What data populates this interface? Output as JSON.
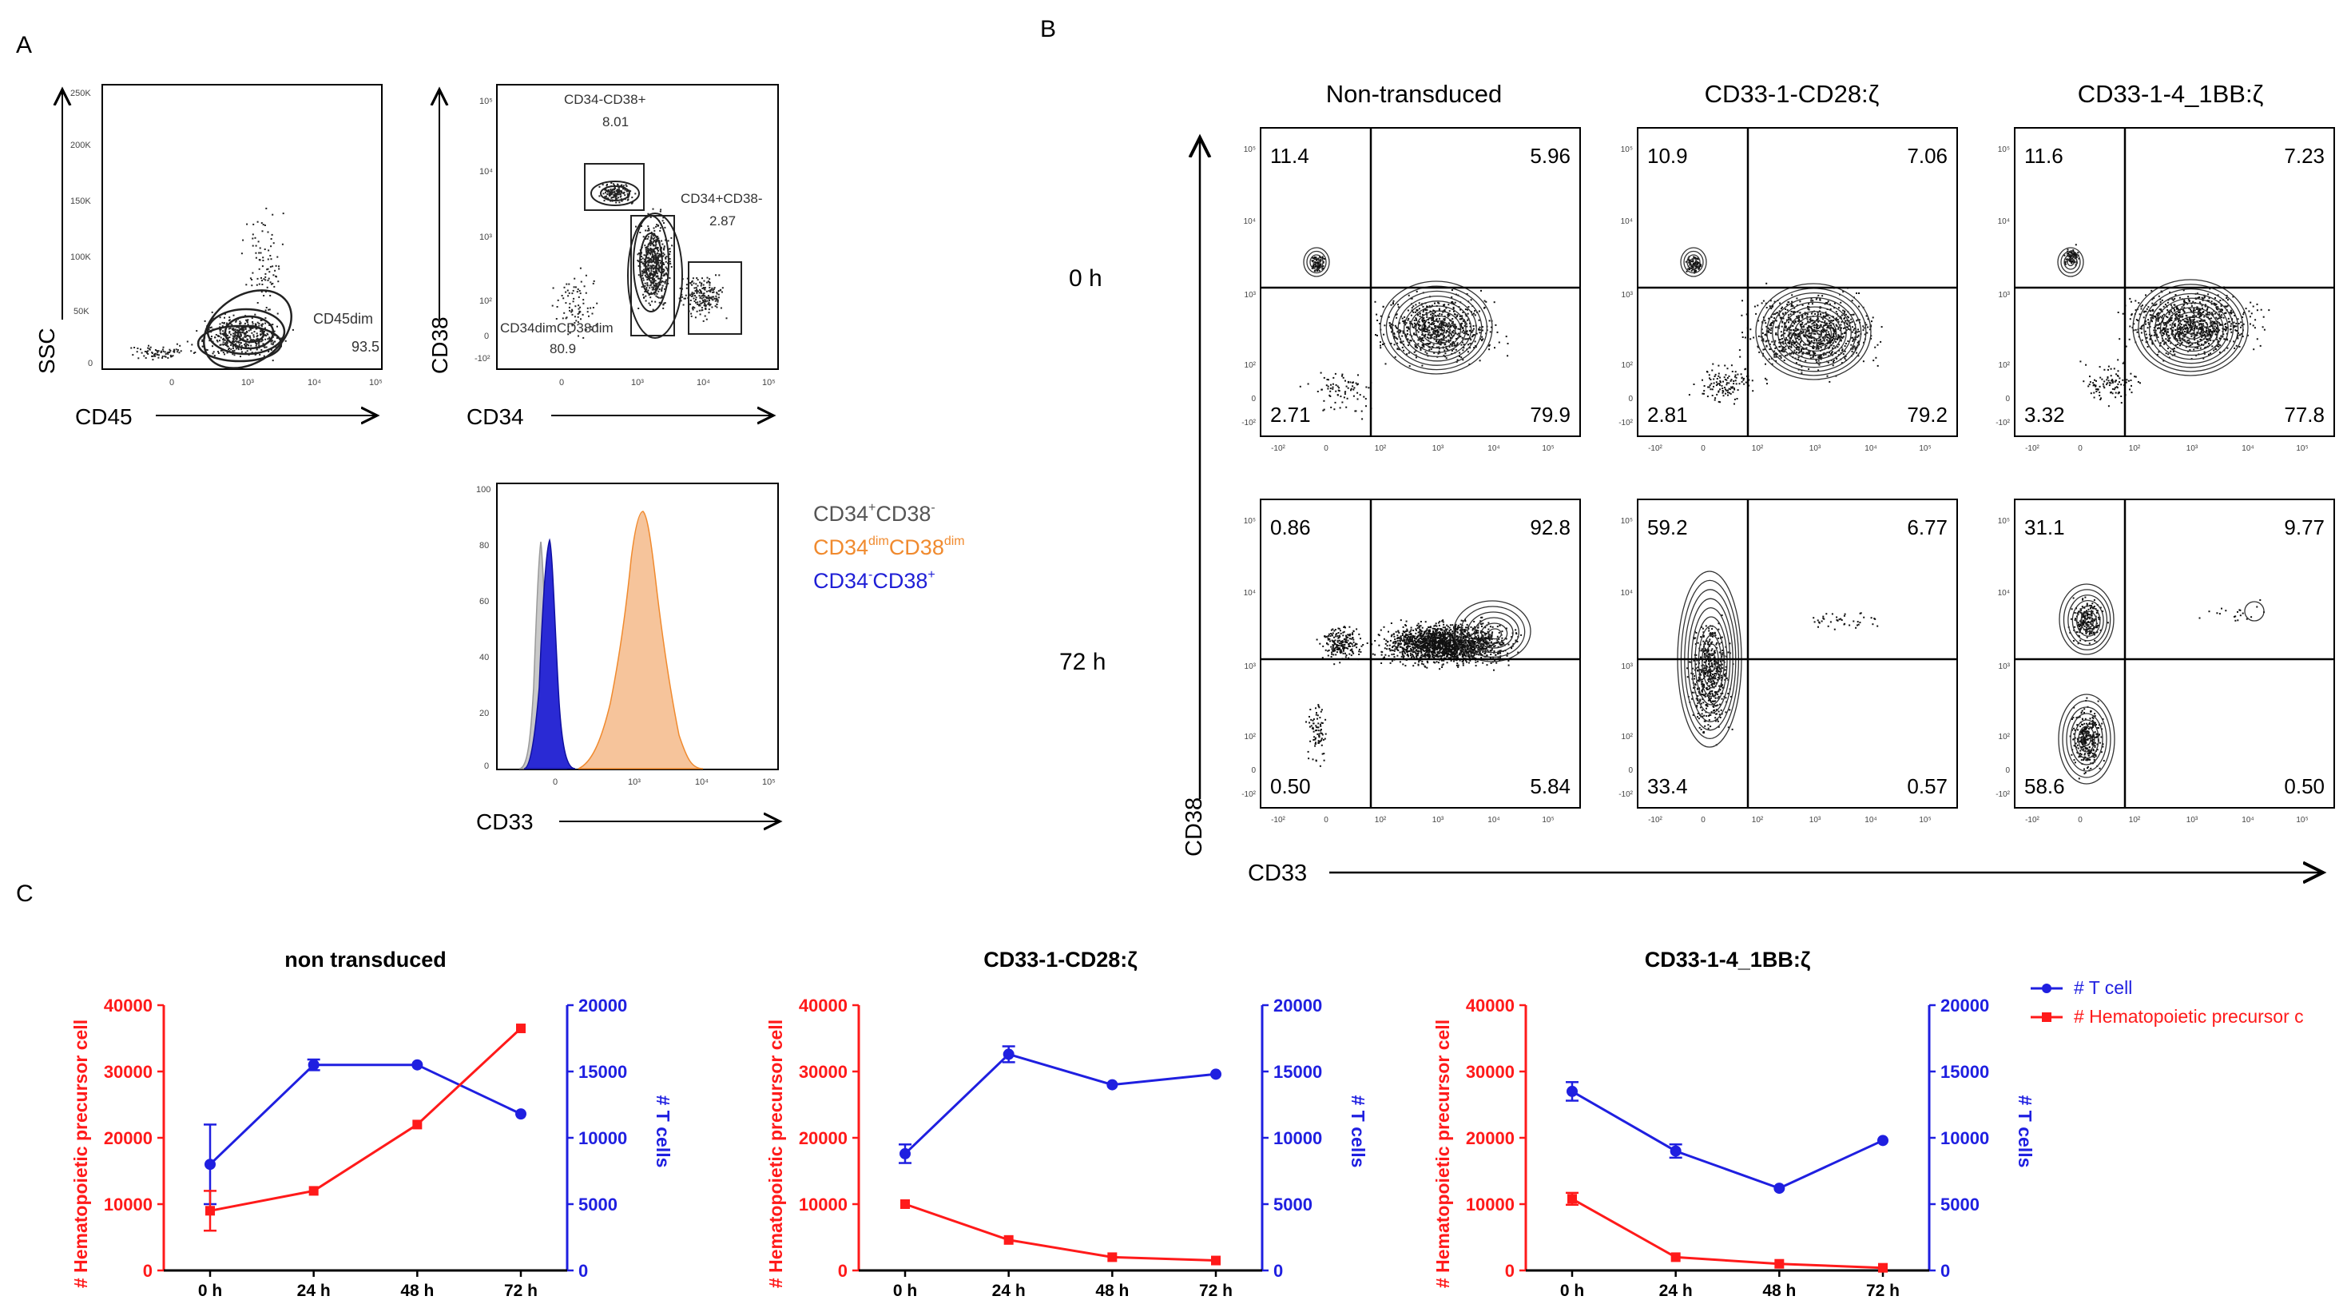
{
  "panel_letters": {
    "a": "A",
    "b": "B",
    "c": "C"
  },
  "panel_a": {
    "scatter1": {
      "x_label": "CD45",
      "y_label": "SSC",
      "x_ticks": [
        "0",
        "10³",
        "10⁴",
        "10⁵"
      ],
      "y_ticks": [
        "250K",
        "200K",
        "150K",
        "100K",
        "50K",
        "0"
      ],
      "gate_label": "CD45dim",
      "gate_value": "93.5"
    },
    "scatter2": {
      "x_label": "CD34",
      "y_label": "CD38",
      "x_ticks": [
        "0",
        "10³",
        "10⁴",
        "10⁵"
      ],
      "y_ticks": [
        "10⁵",
        "10⁴",
        "10³",
        "10²",
        "0",
        "-10²"
      ],
      "gates": [
        {
          "label": "CD34-CD38+",
          "value": "8.01"
        },
        {
          "label": "CD34+CD38-",
          "value": "2.87"
        },
        {
          "label": "CD34dimCD38dim",
          "value": "80.9"
        }
      ]
    },
    "histogram": {
      "x_label": "CD33",
      "x_ticks": [
        "0",
        "10³",
        "10⁴",
        "10⁵"
      ],
      "y_ticks": [
        "100",
        "80",
        "60",
        "40",
        "20",
        "0"
      ],
      "legend": [
        {
          "base": "CD34",
          "sup1": "+",
          "mid": "CD38",
          "sup2": "-",
          "color": "#555555"
        },
        {
          "base": "CD34",
          "sup1": "dim",
          "mid": "CD38",
          "sup2": "dim",
          "color": "#f08a2e"
        },
        {
          "base": "CD34",
          "sup1": "-",
          "mid": "CD38",
          "sup2": "+",
          "color": "#1f1fd6"
        }
      ]
    }
  },
  "panel_b": {
    "column_titles": [
      "Non-transduced",
      "CD33-1-CD28:ζ",
      "CD33-1-4_1BB:ζ"
    ],
    "row_labels": [
      "0 h",
      "72 h"
    ],
    "y_axis_label": "CD38",
    "x_axis_label": "CD33",
    "tick_y": [
      "10⁵",
      "10⁴",
      "10³",
      "10²",
      "0",
      "-10²"
    ],
    "tick_x": [
      "-10²",
      "0",
      "10²",
      "10³",
      "10⁴",
      "10⁵"
    ],
    "quadrants": [
      [
        {
          "ul": "11.4",
          "ur": "5.96",
          "ll": "2.71",
          "lr": "79.9"
        },
        {
          "ul": "10.9",
          "ur": "7.06",
          "ll": "2.81",
          "lr": "79.2"
        },
        {
          "ul": "11.6",
          "ur": "7.23",
          "ll": "3.32",
          "lr": "77.8"
        }
      ],
      [
        {
          "ul": "0.86",
          "ur": "92.8",
          "ll": "0.50",
          "lr": "5.84"
        },
        {
          "ul": "59.2",
          "ur": "6.77",
          "ll": "33.4",
          "lr": "0.57"
        },
        {
          "ul": "31.1",
          "ur": "9.77",
          "ll": "58.6",
          "lr": "0.50"
        }
      ]
    ]
  },
  "chart_data": [
    {
      "type": "line",
      "title": "non transduced",
      "categories": [
        "0 h",
        "24 h",
        "48 h",
        "72 h"
      ],
      "ylabel": "# Hematopoietic precursor cell",
      "ylabel_right": "# T cells",
      "ylim": [
        0,
        40000
      ],
      "ylim_right": [
        0,
        20000
      ],
      "yticks": [
        "0",
        "10000",
        "20000",
        "30000",
        "40000"
      ],
      "yticks_right": [
        "0",
        "5000",
        "10000",
        "15000",
        "20000"
      ],
      "series": [
        {
          "name": "# T cell",
          "axis": "right",
          "color": "#1f1fe0",
          "marker": "circle",
          "values": [
            8000,
            15500,
            15500,
            11800
          ],
          "errors": [
            3000,
            400,
            0,
            0
          ]
        },
        {
          "name": "# Hematopoietic precursor cell",
          "axis": "left",
          "color": "#ff1a1a",
          "marker": "square",
          "values": [
            9000,
            12000,
            22000,
            36500
          ],
          "errors": [
            3000,
            0,
            0,
            0
          ]
        }
      ]
    },
    {
      "type": "line",
      "title": "CD33-1-CD28:ζ",
      "categories": [
        "0 h",
        "24 h",
        "48 h",
        "72 h"
      ],
      "ylabel": "# Hematopoietic precursor cell",
      "ylabel_right": "# T cells",
      "ylim": [
        0,
        40000
      ],
      "ylim_right": [
        0,
        20000
      ],
      "yticks": [
        "0",
        "10000",
        "20000",
        "30000",
        "40000"
      ],
      "yticks_right": [
        "0",
        "5000",
        "10000",
        "15000",
        "20000"
      ],
      "series": [
        {
          "name": "# T cell",
          "axis": "right",
          "color": "#1f1fe0",
          "marker": "circle",
          "values": [
            8800,
            16300,
            14000,
            14800
          ],
          "errors": [
            700,
            600,
            0,
            0
          ]
        },
        {
          "name": "# Hematopoietic precursor cell",
          "axis": "left",
          "color": "#ff1a1a",
          "marker": "square",
          "values": [
            10000,
            4600,
            2000,
            1500
          ],
          "errors": [
            0,
            0,
            0,
            0
          ]
        }
      ]
    },
    {
      "type": "line",
      "title": "CD33-1-4_1BB:ζ",
      "categories": [
        "0 h",
        "24 h",
        "48 h",
        "72 h"
      ],
      "ylabel": "# Hematopoietic precursor cell",
      "ylabel_right": "# T cells",
      "ylim": [
        0,
        40000
      ],
      "ylim_right": [
        0,
        20000
      ],
      "yticks": [
        "0",
        "10000",
        "20000",
        "30000",
        "40000"
      ],
      "yticks_right": [
        "0",
        "5000",
        "10000",
        "15000",
        "20000"
      ],
      "series": [
        {
          "name": "# T cell",
          "axis": "right",
          "color": "#1f1fe0",
          "marker": "circle",
          "values": [
            13500,
            9000,
            6200,
            9800
          ],
          "errors": [
            700,
            500,
            0,
            0
          ]
        },
        {
          "name": "# Hematopoietic precursor cell",
          "axis": "left",
          "color": "#ff1a1a",
          "marker": "square",
          "values": [
            10800,
            2000,
            1000,
            400
          ],
          "errors": [
            900,
            0,
            0,
            0
          ]
        }
      ]
    }
  ],
  "legend": [
    {
      "label": "# T cell",
      "color": "#1f1fe0",
      "marker": "circle"
    },
    {
      "label": "# Hematopoietic precursor c",
      "color": "#ff1a1a",
      "marker": "square"
    }
  ]
}
